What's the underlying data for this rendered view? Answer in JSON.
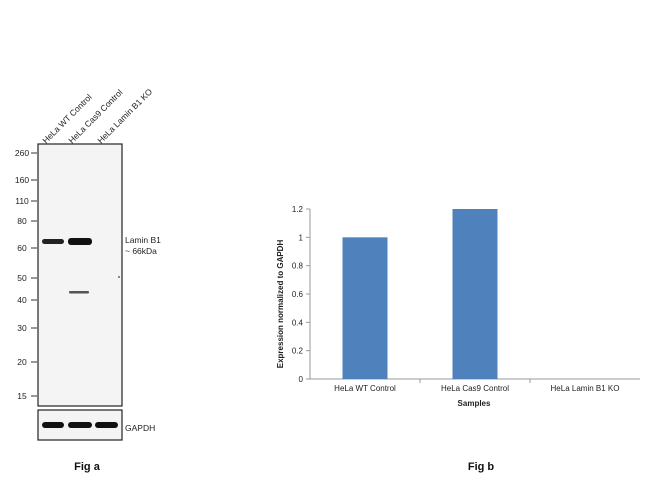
{
  "fig_a": {
    "caption": "Fig a",
    "lane_labels": [
      "HeLa WT Control",
      "HeLa Cas9 Control",
      "HeLa Lamin B1 KO"
    ],
    "mw_markers": [
      "260",
      "160",
      "110",
      "80",
      "60",
      "50",
      "40",
      "30",
      "20",
      "15"
    ],
    "band_label_line1": "Lamin B1",
    "band_label_line2": "~ 66kDa",
    "loading_control_label": "GAPDH"
  },
  "fig_b": {
    "caption": "Fig b"
  },
  "chart_data": {
    "type": "bar",
    "categories": [
      "HeLa WT Control",
      "HeLa Cas9 Control",
      "HeLa Lamin B1 KO"
    ],
    "values": [
      1.0,
      1.2,
      0.0
    ],
    "xlabel": "Samples",
    "ylabel": "Expression  normalized to GAPDH",
    "ylim": [
      0,
      1.2
    ],
    "yticks": [
      "0",
      "0.2",
      "0.4",
      "0.6",
      "0.8",
      "1",
      "1.2"
    ],
    "grid": false,
    "legend": "none",
    "bar_color": "#4f81bd"
  }
}
